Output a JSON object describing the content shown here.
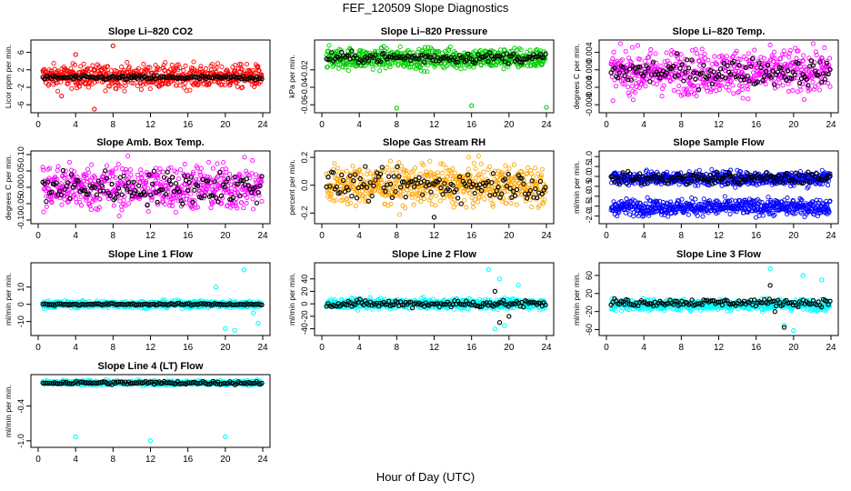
{
  "figure": {
    "title": "FEF_120509  Slope Diagnostics",
    "xlabel": "Hour of Day (UTC)"
  },
  "chart_data": [
    {
      "type": "scatter",
      "title": "Slope Li–820 CO2",
      "ylabel": "Licor ppm per min.",
      "xlim": [
        0,
        24
      ],
      "xticks": [
        0,
        4,
        8,
        12,
        16,
        20,
        24
      ],
      "ylim": [
        -7,
        8
      ],
      "yticks": [
        -6,
        -2,
        2,
        6
      ],
      "ytick_labels": [
        "-6",
        "-2",
        "2",
        "6"
      ],
      "series": [
        {
          "color": "#ff0000",
          "center": 0.5,
          "spread": 1.3,
          "outliers": [
            [
              8,
              7.5
            ],
            [
              4,
              5.5
            ],
            [
              6,
              -7
            ],
            [
              2.5,
              -4
            ]
          ]
        },
        {
          "color": "#000000",
          "center": 0.2,
          "spread": 0.25
        }
      ]
    },
    {
      "type": "scatter",
      "title": "Slope Li–820 Pressure",
      "ylabel": "kPa per min.",
      "xlim": [
        0,
        24
      ],
      "xticks": [
        0,
        4,
        8,
        12,
        16,
        20,
        24
      ],
      "ylim": [
        -0.065,
        0.01
      ],
      "yticks": [
        -0.06,
        -0.04,
        -0.02
      ],
      "ytick_labels": [
        "-0.06",
        "-0.04",
        "-0.02"
      ],
      "series": [
        {
          "color": "#00cc00",
          "center": -0.007,
          "spread": 0.006,
          "outliers": [
            [
              8,
              -0.064
            ],
            [
              16,
              -0.061
            ],
            [
              24,
              -0.063
            ]
          ]
        },
        {
          "color": "#000000",
          "center": -0.006,
          "spread": 0.003
        }
      ]
    },
    {
      "type": "scatter",
      "title": "Slope Li–820 Temp.",
      "ylabel": "degrees C per min.",
      "xlim": [
        0,
        24
      ],
      "xticks": [
        0,
        4,
        8,
        12,
        16,
        20,
        24
      ],
      "ylim": [
        -0.009,
        0.006
      ],
      "yticks": [
        -0.008,
        -0.004,
        0.0,
        0.004
      ],
      "ytick_labels": [
        "-0.008",
        "-0.004",
        "0.000",
        "0.004"
      ],
      "series": [
        {
          "color": "#ff00ff",
          "center": -0.0005,
          "spread": 0.0025
        },
        {
          "color": "#000000",
          "center": -0.0005,
          "spread": 0.0015
        }
      ]
    },
    {
      "type": "scatter",
      "title": "Slope Amb. Box Temp.",
      "ylabel": "degrees C per min.",
      "xlim": [
        0,
        24
      ],
      "xticks": [
        0,
        4,
        8,
        12,
        16,
        20,
        24
      ],
      "ylim": [
        -0.1,
        0.1
      ],
      "yticks": [
        -0.1,
        -0.05,
        0.0,
        0.05,
        0.1
      ],
      "ytick_labels": [
        "-0.10",
        "-0.05",
        "0.00",
        "0.05",
        "0.10"
      ],
      "series": [
        {
          "color": "#ff00ff",
          "center": 0.0,
          "spread": 0.035
        },
        {
          "color": "#000000",
          "center": 0.0,
          "spread": 0.025
        }
      ]
    },
    {
      "type": "scatter",
      "title": "Slope Gas Stream RH",
      "ylabel": "percent per min.",
      "xlim": [
        0,
        24
      ],
      "xticks": [
        0,
        4,
        8,
        12,
        16,
        20,
        24
      ],
      "ylim": [
        -0.25,
        0.22
      ],
      "yticks": [
        -0.2,
        0.0,
        0.2
      ],
      "ytick_labels": [
        "-0.2",
        "0.0",
        "0.2"
      ],
      "series": [
        {
          "color": "#ffa500",
          "center": 0.0,
          "spread": 0.07
        },
        {
          "color": "#000000",
          "center": 0.0,
          "spread": 0.05,
          "outliers": [
            [
              12,
              -0.23
            ]
          ]
        }
      ]
    },
    {
      "type": "scatter",
      "title": "Slope Sample Flow",
      "ylabel": "ml/min per min.",
      "xlim": [
        0,
        24
      ],
      "xticks": [
        0,
        4,
        8,
        12,
        16,
        20,
        24
      ],
      "ylim": [
        -2.2,
        1.1
      ],
      "yticks": [
        -2.0,
        -1.5,
        -1.0,
        -0.5,
        0.0,
        0.5,
        1.0
      ],
      "ytick_labels": [
        "-2.0",
        "-1.5",
        "-1.0",
        "-0.5",
        "0.0",
        "0.5",
        "1.0"
      ],
      "series": [
        {
          "color": "#0000ff",
          "center": -0.1,
          "spread": 0.18
        },
        {
          "color": "#0000ff",
          "center": -1.55,
          "spread": 0.2
        },
        {
          "color": "#000000",
          "center": -0.1,
          "spread": 0.15
        }
      ]
    },
    {
      "type": "scatter",
      "title": "Slope Line 1 Flow",
      "ylabel": "ml/min per min.",
      "xlim": [
        0,
        24
      ],
      "xticks": [
        0,
        4,
        8,
        12,
        16,
        20,
        24
      ],
      "ylim": [
        -16,
        22
      ],
      "yticks": [
        -10,
        0,
        10
      ],
      "ytick_labels": [
        "-10",
        "0",
        "10"
      ],
      "series": [
        {
          "color": "#00ffff",
          "center": 0.0,
          "spread": 1.0,
          "outliers": [
            [
              19,
              10
            ],
            [
              20,
              -14
            ],
            [
              21,
              -15
            ],
            [
              22,
              20
            ],
            [
              23,
              -5
            ],
            [
              23.5,
              -11
            ]
          ]
        },
        {
          "color": "#000000",
          "center": 0.0,
          "spread": 0.3
        }
      ]
    },
    {
      "type": "scatter",
      "title": "Slope Line 2 Flow",
      "ylabel": "ml/min per min.",
      "xlim": [
        0,
        24
      ],
      "xticks": [
        0,
        4,
        8,
        12,
        16,
        20,
        24
      ],
      "ylim": [
        -45,
        60
      ],
      "yticks": [
        -40,
        -20,
        0,
        20,
        40
      ],
      "ytick_labels": [
        "-40",
        "-20",
        "0",
        "20",
        "40"
      ],
      "series": [
        {
          "color": "#00ffff",
          "center": 0.0,
          "spread": 4.0,
          "outliers": [
            [
              17.8,
              55
            ],
            [
              18.5,
              -40
            ],
            [
              19,
              40
            ],
            [
              21,
              30
            ],
            [
              19.5,
              -35
            ]
          ]
        },
        {
          "color": "#000000",
          "center": 0.0,
          "spread": 3.0,
          "outliers": [
            [
              18.5,
              20
            ],
            [
              19,
              -30
            ],
            [
              20,
              -20
            ]
          ]
        }
      ]
    },
    {
      "type": "scatter",
      "title": "Slope Line 3 Flow",
      "ylabel": "ml/min per min.",
      "xlim": [
        0,
        24
      ],
      "xticks": [
        0,
        4,
        8,
        12,
        16,
        20,
        24
      ],
      "ylim": [
        -65,
        80
      ],
      "yticks": [
        -60,
        -20,
        20,
        60
      ],
      "ytick_labels": [
        "-60",
        "-20",
        "20",
        "60"
      ],
      "series": [
        {
          "color": "#00ffff",
          "center": -5.0,
          "spread": 6.0,
          "outliers": [
            [
              17.5,
              75
            ],
            [
              19,
              -50
            ],
            [
              20,
              -62
            ],
            [
              21,
              60
            ],
            [
              23,
              50
            ]
          ]
        },
        {
          "color": "#000000",
          "center": 0.0,
          "spread": 4.0,
          "outliers": [
            [
              17.5,
              38
            ],
            [
              18,
              -20
            ],
            [
              19,
              -55
            ]
          ]
        }
      ]
    },
    {
      "type": "scatter",
      "title": "Slope Line 4 (LT) Flow",
      "ylabel": "ml/min per min.",
      "xlim": [
        0,
        24
      ],
      "xticks": [
        0,
        4,
        8,
        12,
        16,
        20,
        24
      ],
      "ylim": [
        -1.05,
        0.08
      ],
      "yticks": [
        -1.0,
        -0.4
      ],
      "ytick_labels": [
        "-1.0",
        "-0.4"
      ],
      "series": [
        {
          "color": "#00ffff",
          "center": 0.0,
          "spread": 0.02,
          "outliers": [
            [
              4,
              -0.93
            ],
            [
              12,
              -1.0
            ],
            [
              20,
              -0.93
            ]
          ]
        },
        {
          "color": "#000000",
          "center": 0.0,
          "spread": 0.015
        }
      ]
    }
  ]
}
